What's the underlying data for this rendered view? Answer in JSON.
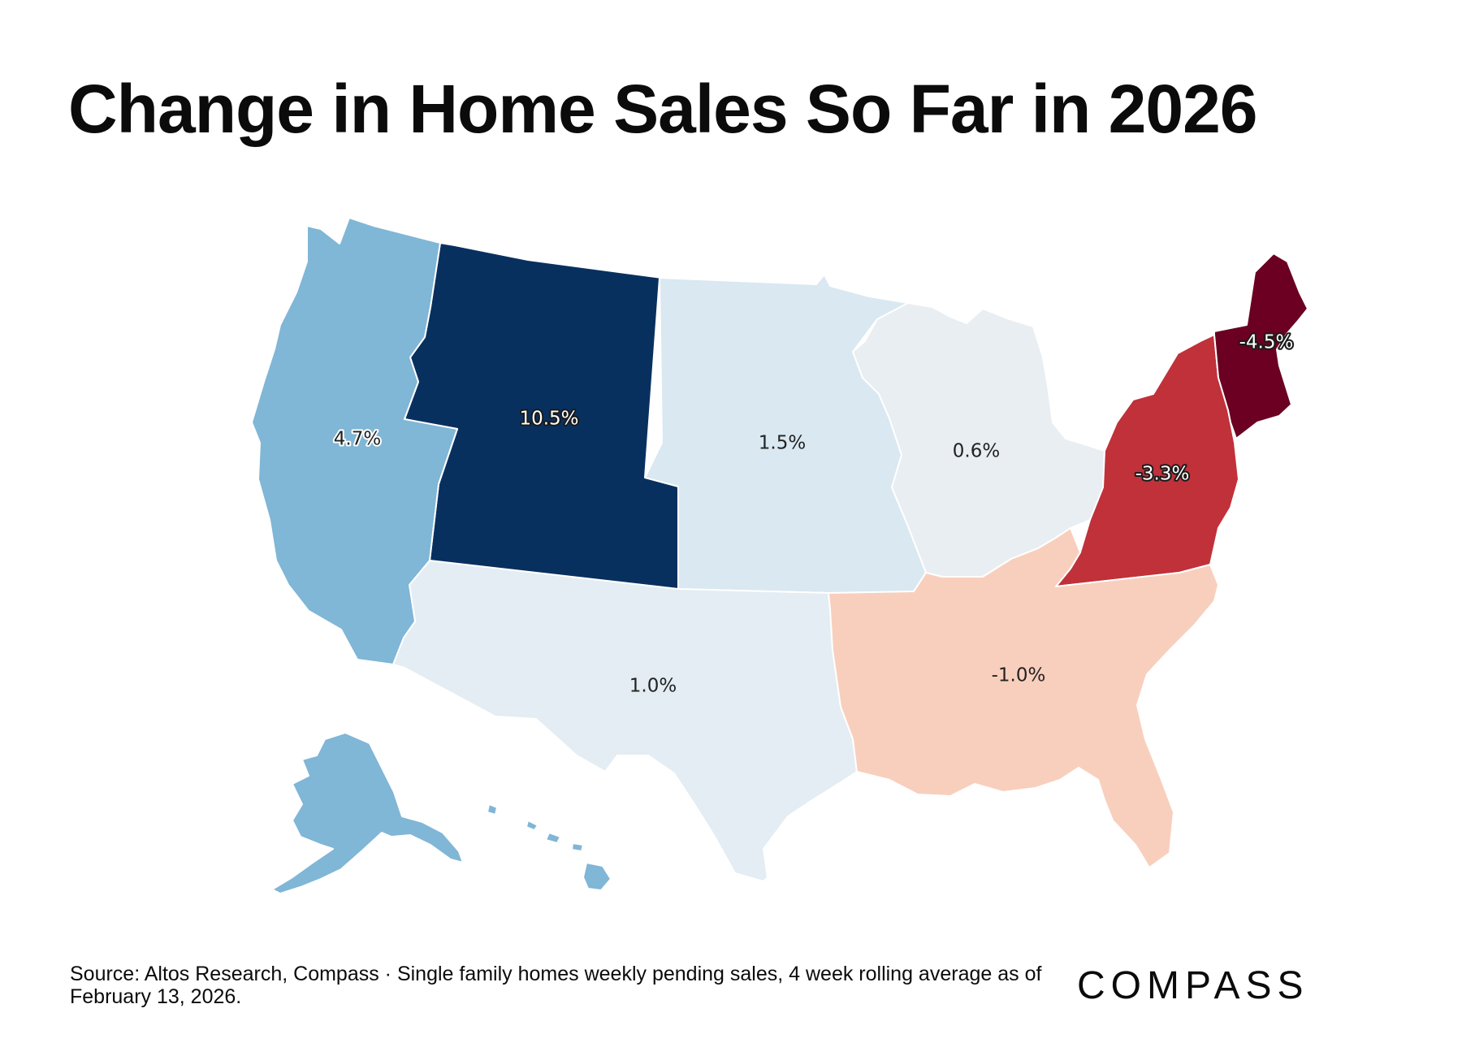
{
  "title": "Change in Home Sales So Far in 2026",
  "source": "Source: Altos Research, Compass · Single family homes weekly pending sales, 4 week rolling average as of February 13, 2026.",
  "brand": "COMPASS",
  "colors": {
    "west_coast": "#80b6d6",
    "mountain": "#08305f",
    "plains": "#d9e8f1",
    "midwest": "#e8eef2",
    "south_central": "#e3edf3",
    "southeast": "#f8cfbd",
    "mid_atlantic": "#c0313a",
    "new_england": "#6b0022"
  },
  "regions": [
    {
      "id": "west_coast",
      "label": "4.7%"
    },
    {
      "id": "mountain",
      "label": "10.5%"
    },
    {
      "id": "plains",
      "label": "1.5%"
    },
    {
      "id": "midwest",
      "label": "0.6%"
    },
    {
      "id": "mid_atlantic",
      "label": "-3.3%"
    },
    {
      "id": "new_england",
      "label": "-4.5%"
    },
    {
      "id": "south_central",
      "label": "1.0%"
    },
    {
      "id": "southeast",
      "label": "-1.0%"
    }
  ]
}
